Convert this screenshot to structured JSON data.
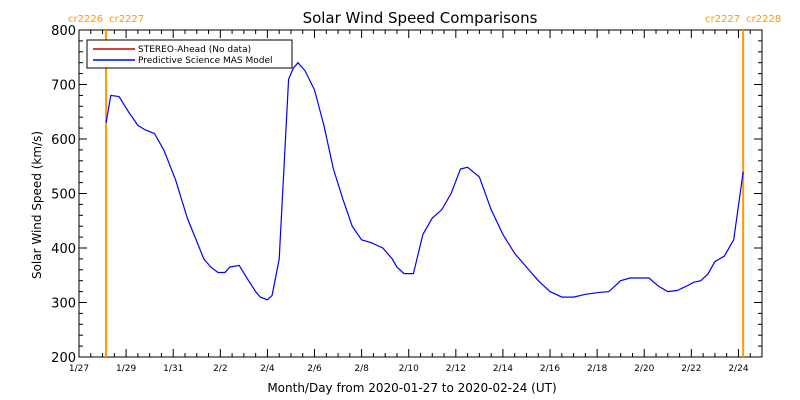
{
  "chart_data": {
    "type": "line",
    "title": "Solar Wind Speed Comparisons",
    "xlabel": "Month/Day from 2020-01-27 to 2020-02-24 (UT)",
    "ylabel": "Solar Wind Speed (km/s)",
    "ylim": [
      200,
      800
    ],
    "xlim": [
      0,
      29
    ],
    "x_unit": "days since 2020-01-27",
    "yticks": [
      200,
      300,
      400,
      500,
      600,
      700,
      800
    ],
    "xticks": [
      {
        "x": 0,
        "label": "1/27"
      },
      {
        "x": 2,
        "label": "1/29"
      },
      {
        "x": 4,
        "label": "1/31"
      },
      {
        "x": 6,
        "label": "2/2"
      },
      {
        "x": 8,
        "label": "2/4"
      },
      {
        "x": 10,
        "label": "2/6"
      },
      {
        "x": 12,
        "label": "2/8"
      },
      {
        "x": 14,
        "label": "2/10"
      },
      {
        "x": 16,
        "label": "2/12"
      },
      {
        "x": 18,
        "label": "2/14"
      },
      {
        "x": 20,
        "label": "2/16"
      },
      {
        "x": 22,
        "label": "2/18"
      },
      {
        "x": 24,
        "label": "2/20"
      },
      {
        "x": 26,
        "label": "2/22"
      },
      {
        "x": 28,
        "label": "2/24"
      }
    ],
    "legend": {
      "position": "top-left",
      "entries": [
        {
          "name": "STEREO-Ahead (No data)",
          "color": "#cc0000"
        },
        {
          "name": "Predictive Science MAS Model",
          "color": "#0000ff"
        }
      ]
    },
    "series": [
      {
        "name": "Predictive Science MAS Model",
        "color": "#0000ff",
        "x": [
          1.15,
          1.35,
          1.7,
          2.1,
          2.5,
          2.8,
          3.2,
          3.6,
          4.1,
          4.6,
          5.0,
          5.3,
          5.6,
          5.9,
          6.2,
          6.4,
          6.8,
          7.2,
          7.5,
          7.7,
          8.0,
          8.2,
          8.5,
          8.9,
          9.1,
          9.3,
          9.6,
          10.0,
          10.4,
          10.8,
          11.2,
          11.6,
          12.0,
          12.4,
          12.9,
          13.3,
          13.5,
          13.8,
          14.2,
          14.6,
          15.0,
          15.4,
          15.8,
          16.2,
          16.5,
          17.0,
          17.5,
          18.0,
          18.5,
          19.0,
          19.5,
          20.0,
          20.5,
          21.0,
          21.5,
          22.0,
          22.5,
          23.0,
          23.4,
          23.8,
          24.2,
          24.6,
          25.0,
          25.4,
          25.8,
          26.1,
          26.4,
          26.7,
          27.0,
          27.4,
          27.8,
          28.2
        ],
        "y": [
          630,
          680,
          678,
          650,
          625,
          617,
          610,
          580,
          525,
          455,
          412,
          380,
          365,
          355,
          355,
          365,
          368,
          340,
          320,
          310,
          305,
          313,
          380,
          710,
          730,
          740,
          725,
          690,
          625,
          545,
          490,
          440,
          415,
          410,
          400,
          380,
          365,
          353,
          353,
          425,
          455,
          470,
          500,
          545,
          548,
          530,
          470,
          425,
          390,
          365,
          340,
          320,
          310,
          310,
          315,
          318,
          320,
          340,
          345,
          345,
          345,
          330,
          320,
          322,
          330,
          337,
          340,
          352,
          375,
          385,
          415,
          540
        ]
      }
    ],
    "carrington_markers": [
      {
        "x": 1.15,
        "left_label": "cr2226",
        "right_label": "cr2227",
        "color": "#ff9900"
      },
      {
        "x": 28.2,
        "left_label": "cr2227",
        "right_label": "cr2228",
        "color": "#ff9900"
      }
    ]
  }
}
